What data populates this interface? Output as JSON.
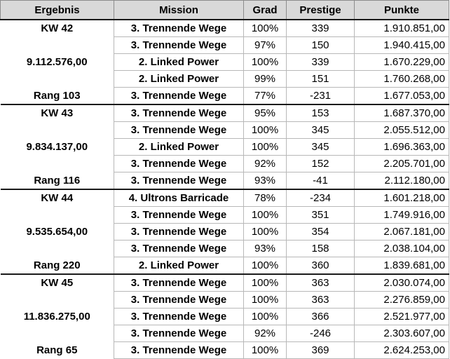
{
  "headers": {
    "ergebnis": "Ergebnis",
    "mission": "Mission",
    "grad": "Grad",
    "prestige": "Prestige",
    "punkte": "Punkte"
  },
  "groups": [
    {
      "ergebnis": [
        "KW 42",
        "",
        "9.112.576,00",
        "",
        "Rang 103"
      ],
      "rows": [
        {
          "mission": "3. Trennende Wege",
          "grad": "100%",
          "prestige": "339",
          "punkte": "1.910.851,00"
        },
        {
          "mission": "3. Trennende Wege",
          "grad": "97%",
          "prestige": "150",
          "punkte": "1.940.415,00"
        },
        {
          "mission": "2. Linked Power",
          "grad": "100%",
          "prestige": "339",
          "punkte": "1.670.229,00"
        },
        {
          "mission": "2. Linked Power",
          "grad": "99%",
          "prestige": "151",
          "punkte": "1.760.268,00"
        },
        {
          "mission": "3. Trennende Wege",
          "grad": "77%",
          "prestige": "-231",
          "punkte": "1.677.053,00"
        }
      ]
    },
    {
      "ergebnis": [
        "KW 43",
        "",
        "9.834.137,00",
        "",
        "Rang 116"
      ],
      "rows": [
        {
          "mission": "3. Trennende Wege",
          "grad": "95%",
          "prestige": "153",
          "punkte": "1.687.370,00"
        },
        {
          "mission": "3. Trennende Wege",
          "grad": "100%",
          "prestige": "345",
          "punkte": "2.055.512,00"
        },
        {
          "mission": "2. Linked Power",
          "grad": "100%",
          "prestige": "345",
          "punkte": "1.696.363,00"
        },
        {
          "mission": "3. Trennende Wege",
          "grad": "92%",
          "prestige": "152",
          "punkte": "2.205.701,00"
        },
        {
          "mission": "3. Trennende Wege",
          "grad": "93%",
          "prestige": "-41",
          "punkte": "2.112.180,00"
        }
      ]
    },
    {
      "ergebnis": [
        "KW 44",
        "",
        "9.535.654,00",
        "",
        "Rang 220"
      ],
      "rows": [
        {
          "mission": "4. Ultrons Barricade",
          "grad": "78%",
          "prestige": "-234",
          "punkte": "1.601.218,00"
        },
        {
          "mission": "3. Trennende Wege",
          "grad": "100%",
          "prestige": "351",
          "punkte": "1.749.916,00"
        },
        {
          "mission": "3. Trennende Wege",
          "grad": "100%",
          "prestige": "354",
          "punkte": "2.067.181,00"
        },
        {
          "mission": "3. Trennende Wege",
          "grad": "93%",
          "prestige": "158",
          "punkte": "2.038.104,00"
        },
        {
          "mission": "2. Linked Power",
          "grad": "100%",
          "prestige": "360",
          "punkte": "1.839.681,00"
        }
      ]
    },
    {
      "ergebnis": [
        "KW 45",
        "",
        "11.836.275,00",
        "",
        "Rang 65"
      ],
      "rows": [
        {
          "mission": "3. Trennende Wege",
          "grad": "100%",
          "prestige": "363",
          "punkte": "2.030.074,00"
        },
        {
          "mission": "3. Trennende Wege",
          "grad": "100%",
          "prestige": "363",
          "punkte": "2.276.859,00"
        },
        {
          "mission": "3. Trennende Wege",
          "grad": "100%",
          "prestige": "366",
          "punkte": "2.521.977,00"
        },
        {
          "mission": "3. Trennende Wege",
          "grad": "92%",
          "prestige": "-246",
          "punkte": "2.303.607,00"
        },
        {
          "mission": "3. Trennende Wege",
          "grad": "100%",
          "prestige": "369",
          "punkte": "2.624.253,00"
        }
      ]
    }
  ]
}
